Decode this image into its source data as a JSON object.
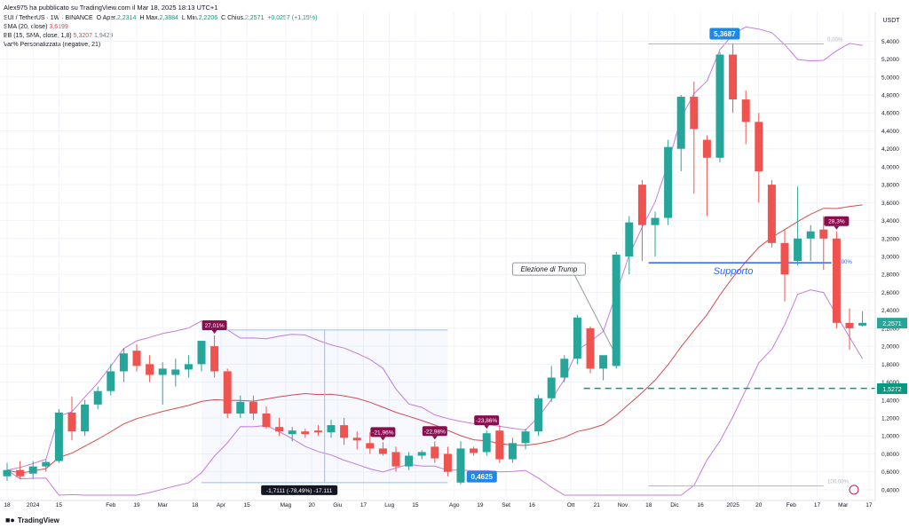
{
  "header": {
    "published": "Alex975 ha pubblicato su TradingView.com il Mar 18, 2025 18:13 UTC+1",
    "symbol_line": "SUI / TetherUS · 1W · BINANCE",
    "ohlc": {
      "o_label": "O",
      "o_prefix": "Aper.",
      "o": "2,2314",
      "h_label": "H",
      "h_prefix": "Max.",
      "h": "2,3884",
      "l_label": "L",
      "l_prefix": "Min.",
      "l": "2,2206",
      "c_label": "C",
      "c_prefix": "Chius.",
      "c": "2,2571",
      "change": "+0,0257 (+1,15%)"
    },
    "sma_label": "SMA (20, close)",
    "sma_value": "3,6199",
    "bb_label": "BB (15, SMA, close, 1,8)",
    "bb_upper": "5,3207",
    "bb_lower": "1,9429",
    "var_label": "Var% Personalizzata (negative, 21)"
  },
  "brand": "TradingView",
  "chart_data": {
    "type": "candlestick",
    "unit": "USDT",
    "y_ticks": [
      "0,4000",
      "0,6000",
      "0,8000",
      "1,0000",
      "1,2000",
      "1,4000",
      "1,6000",
      "1,8000",
      "2,0000",
      "2,2000",
      "2,4000",
      "2,6000",
      "2,8000",
      "3,0000",
      "3,2000",
      "3,4000",
      "3,6000",
      "3,8000",
      "4,0000",
      "4,2000",
      "4,4000",
      "4,6000",
      "4,8000",
      "5,0000",
      "5,2000",
      "5,4000"
    ],
    "ylim": [
      0.32,
      5.72
    ],
    "x_ticks": [
      {
        "i": 0,
        "label": "18"
      },
      {
        "i": 2,
        "label": "2024"
      },
      {
        "i": 4,
        "label": "15"
      },
      {
        "i": 8,
        "label": "Feb"
      },
      {
        "i": 10,
        "label": "19"
      },
      {
        "i": 12,
        "label": "Mar"
      },
      {
        "i": 14.5,
        "label": "18"
      },
      {
        "i": 16.5,
        "label": "Apr"
      },
      {
        "i": 18.5,
        "label": "15"
      },
      {
        "i": 21.5,
        "label": "Mag"
      },
      {
        "i": 23.5,
        "label": "20"
      },
      {
        "i": 25.5,
        "label": "Giu"
      },
      {
        "i": 27.5,
        "label": "17"
      },
      {
        "i": 29.5,
        "label": "Lug"
      },
      {
        "i": 31.5,
        "label": "15"
      },
      {
        "i": 34.5,
        "label": "Ago"
      },
      {
        "i": 36.5,
        "label": "19"
      },
      {
        "i": 38.5,
        "label": "Set"
      },
      {
        "i": 40.5,
        "label": "16"
      },
      {
        "i": 43.5,
        "label": "Ott"
      },
      {
        "i": 45.5,
        "label": "21"
      },
      {
        "i": 47.5,
        "label": "Nov"
      },
      {
        "i": 49.5,
        "label": "18"
      },
      {
        "i": 51.5,
        "label": "Dic"
      },
      {
        "i": 53.5,
        "label": "16"
      },
      {
        "i": 56,
        "label": "2025"
      },
      {
        "i": 58,
        "label": "20"
      },
      {
        "i": 60.5,
        "label": "Feb"
      },
      {
        "i": 62.5,
        "label": "17"
      },
      {
        "i": 64.5,
        "label": "Mar"
      },
      {
        "i": 66.5,
        "label": "17"
      }
    ],
    "candles": [
      [
        0.55,
        0.7,
        0.5,
        0.62
      ],
      [
        0.62,
        0.72,
        0.52,
        0.55
      ],
      [
        0.58,
        0.72,
        0.52,
        0.66
      ],
      [
        0.66,
        0.74,
        0.6,
        0.71
      ],
      [
        0.72,
        1.3,
        0.7,
        1.26
      ],
      [
        1.26,
        1.44,
        0.95,
        1.05
      ],
      [
        1.05,
        1.4,
        1.0,
        1.35
      ],
      [
        1.35,
        1.55,
        1.3,
        1.5
      ],
      [
        1.5,
        1.8,
        1.45,
        1.72
      ],
      [
        1.72,
        1.98,
        1.6,
        1.92
      ],
      [
        1.95,
        2.02,
        1.72,
        1.78
      ],
      [
        1.8,
        1.9,
        1.6,
        1.68
      ],
      [
        1.68,
        1.82,
        1.35,
        1.75
      ],
      [
        1.68,
        1.86,
        1.55,
        1.74
      ],
      [
        1.74,
        1.9,
        1.65,
        1.8
      ],
      [
        1.8,
        2.06,
        1.72,
        2.06
      ],
      [
        2.0,
        2.12,
        1.65,
        1.72
      ],
      [
        1.72,
        1.75,
        1.2,
        1.25
      ],
      [
        1.25,
        1.45,
        1.2,
        1.38
      ],
      [
        1.38,
        1.45,
        1.18,
        1.25
      ],
      [
        1.25,
        1.33,
        1.08,
        1.1
      ],
      [
        1.1,
        1.2,
        1.0,
        1.05
      ],
      [
        1.02,
        1.1,
        0.94,
        1.06
      ],
      [
        1.05,
        1.08,
        0.98,
        1.02
      ],
      [
        1.06,
        1.12,
        1.0,
        1.04
      ],
      [
        1.04,
        1.18,
        0.98,
        1.12
      ],
      [
        1.12,
        1.2,
        0.9,
        0.98
      ],
      [
        0.98,
        1.05,
        0.85,
        0.95
      ],
      [
        0.92,
        1.04,
        0.8,
        0.86
      ],
      [
        0.86,
        0.93,
        0.78,
        0.8
      ],
      [
        0.82,
        0.88,
        0.6,
        0.66
      ],
      [
        0.66,
        0.82,
        0.62,
        0.78
      ],
      [
        0.78,
        0.84,
        0.74,
        0.82
      ],
      [
        0.88,
        0.94,
        0.7,
        0.75
      ],
      [
        0.8,
        0.88,
        0.55,
        0.6
      ],
      [
        0.48,
        0.94,
        0.46,
        0.86
      ],
      [
        0.86,
        0.88,
        0.78,
        0.81
      ],
      [
        0.82,
        1.06,
        0.78,
        1.03
      ],
      [
        1.06,
        1.12,
        0.7,
        0.74
      ],
      [
        0.74,
        0.98,
        0.7,
        0.92
      ],
      [
        0.92,
        1.08,
        0.85,
        1.05
      ],
      [
        1.05,
        1.46,
        1.0,
        1.42
      ],
      [
        1.42,
        1.78,
        1.38,
        1.65
      ],
      [
        1.65,
        1.9,
        1.6,
        1.86
      ],
      [
        1.86,
        2.35,
        1.8,
        2.32
      ],
      [
        2.2,
        2.22,
        1.7,
        1.75
      ],
      [
        1.75,
        1.85,
        1.62,
        1.9
      ],
      [
        1.78,
        3.05,
        1.75,
        3.02
      ],
      [
        3.0,
        3.45,
        2.8,
        3.38
      ],
      [
        3.8,
        3.85,
        2.95,
        3.35
      ],
      [
        3.35,
        3.5,
        3.0,
        3.43
      ],
      [
        3.43,
        4.3,
        3.35,
        4.22
      ],
      [
        4.2,
        4.8,
        3.95,
        4.78
      ],
      [
        4.78,
        4.95,
        3.7,
        4.42
      ],
      [
        4.3,
        4.35,
        3.45,
        4.1
      ],
      [
        4.1,
        5.28,
        4.05,
        5.25
      ],
      [
        5.25,
        5.37,
        4.6,
        4.75
      ],
      [
        4.75,
        4.85,
        4.25,
        4.5
      ],
      [
        4.5,
        4.6,
        3.6,
        3.95
      ],
      [
        3.8,
        3.85,
        3.1,
        3.15
      ],
      [
        3.15,
        3.3,
        2.5,
        2.8
      ],
      [
        2.95,
        3.78,
        2.9,
        3.2
      ],
      [
        3.2,
        3.35,
        2.95,
        3.28
      ],
      [
        3.3,
        3.45,
        2.85,
        3.2
      ],
      [
        3.2,
        3.28,
        2.2,
        2.26
      ],
      [
        2.26,
        2.42,
        1.96,
        2.2
      ],
      [
        2.23,
        2.39,
        2.22,
        2.26
      ]
    ],
    "annotations": {
      "high_label": "5,3687",
      "low_label": "0,4625",
      "measure_label": "-1,7111 (-78,49%) -17.111",
      "fib_top": "0,00%",
      "fib_mid": "50,00%",
      "fib_bottom": "100,00%",
      "callout": "Elezione di Trump",
      "support_label": "Supporto",
      "support_level": 2.93,
      "dashed_level": 1.53,
      "last_price": "2,2571",
      "dashed_price": "1,5272",
      "drops": [
        {
          "i": 16,
          "label": "27,01%"
        },
        {
          "i": 29,
          "label": "-21,96%"
        },
        {
          "i": 33,
          "label": "-22,98%"
        },
        {
          "i": 37,
          "label": "-23,86%"
        },
        {
          "i": 64,
          "label": "28,3%"
        }
      ]
    },
    "colors": {
      "up": "#26a69a",
      "down": "#ef5350",
      "sma": "#d84a4a",
      "bb": "#c77be0",
      "label": "#880e4f",
      "support": "#2962ff",
      "dashed": "#089981",
      "price_tag": "#26a69a",
      "price_tag_blue": "#1e88e5"
    }
  }
}
